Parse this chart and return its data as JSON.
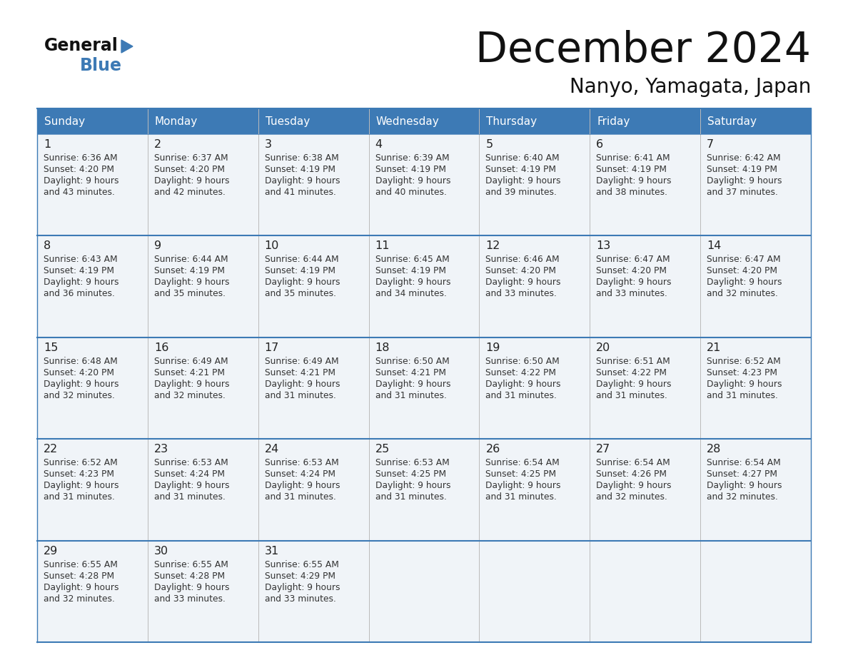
{
  "title": "December 2024",
  "subtitle": "Nanyo, Yamagata, Japan",
  "header_color": "#3d7ab5",
  "header_text_color": "#ffffff",
  "cell_bg": "#f0f4f8",
  "line_color": "#3d7ab5",
  "days_of_week": [
    "Sunday",
    "Monday",
    "Tuesday",
    "Wednesday",
    "Thursday",
    "Friday",
    "Saturday"
  ],
  "weeks": [
    [
      {
        "day": "1",
        "sunrise": "6:36 AM",
        "sunset": "4:20 PM",
        "daylight": "9 hours",
        "daylight2": "and 43 minutes."
      },
      {
        "day": "2",
        "sunrise": "6:37 AM",
        "sunset": "4:20 PM",
        "daylight": "9 hours",
        "daylight2": "and 42 minutes."
      },
      {
        "day": "3",
        "sunrise": "6:38 AM",
        "sunset": "4:19 PM",
        "daylight": "9 hours",
        "daylight2": "and 41 minutes."
      },
      {
        "day": "4",
        "sunrise": "6:39 AM",
        "sunset": "4:19 PM",
        "daylight": "9 hours",
        "daylight2": "and 40 minutes."
      },
      {
        "day": "5",
        "sunrise": "6:40 AM",
        "sunset": "4:19 PM",
        "daylight": "9 hours",
        "daylight2": "and 39 minutes."
      },
      {
        "day": "6",
        "sunrise": "6:41 AM",
        "sunset": "4:19 PM",
        "daylight": "9 hours",
        "daylight2": "and 38 minutes."
      },
      {
        "day": "7",
        "sunrise": "6:42 AM",
        "sunset": "4:19 PM",
        "daylight": "9 hours",
        "daylight2": "and 37 minutes."
      }
    ],
    [
      {
        "day": "8",
        "sunrise": "6:43 AM",
        "sunset": "4:19 PM",
        "daylight": "9 hours",
        "daylight2": "and 36 minutes."
      },
      {
        "day": "9",
        "sunrise": "6:44 AM",
        "sunset": "4:19 PM",
        "daylight": "9 hours",
        "daylight2": "and 35 minutes."
      },
      {
        "day": "10",
        "sunrise": "6:44 AM",
        "sunset": "4:19 PM",
        "daylight": "9 hours",
        "daylight2": "and 35 minutes."
      },
      {
        "day": "11",
        "sunrise": "6:45 AM",
        "sunset": "4:19 PM",
        "daylight": "9 hours",
        "daylight2": "and 34 minutes."
      },
      {
        "day": "12",
        "sunrise": "6:46 AM",
        "sunset": "4:20 PM",
        "daylight": "9 hours",
        "daylight2": "and 33 minutes."
      },
      {
        "day": "13",
        "sunrise": "6:47 AM",
        "sunset": "4:20 PM",
        "daylight": "9 hours",
        "daylight2": "and 33 minutes."
      },
      {
        "day": "14",
        "sunrise": "6:47 AM",
        "sunset": "4:20 PM",
        "daylight": "9 hours",
        "daylight2": "and 32 minutes."
      }
    ],
    [
      {
        "day": "15",
        "sunrise": "6:48 AM",
        "sunset": "4:20 PM",
        "daylight": "9 hours",
        "daylight2": "and 32 minutes."
      },
      {
        "day": "16",
        "sunrise": "6:49 AM",
        "sunset": "4:21 PM",
        "daylight": "9 hours",
        "daylight2": "and 32 minutes."
      },
      {
        "day": "17",
        "sunrise": "6:49 AM",
        "sunset": "4:21 PM",
        "daylight": "9 hours",
        "daylight2": "and 31 minutes."
      },
      {
        "day": "18",
        "sunrise": "6:50 AM",
        "sunset": "4:21 PM",
        "daylight": "9 hours",
        "daylight2": "and 31 minutes."
      },
      {
        "day": "19",
        "sunrise": "6:50 AM",
        "sunset": "4:22 PM",
        "daylight": "9 hours",
        "daylight2": "and 31 minutes."
      },
      {
        "day": "20",
        "sunrise": "6:51 AM",
        "sunset": "4:22 PM",
        "daylight": "9 hours",
        "daylight2": "and 31 minutes."
      },
      {
        "day": "21",
        "sunrise": "6:52 AM",
        "sunset": "4:23 PM",
        "daylight": "9 hours",
        "daylight2": "and 31 minutes."
      }
    ],
    [
      {
        "day": "22",
        "sunrise": "6:52 AM",
        "sunset": "4:23 PM",
        "daylight": "9 hours",
        "daylight2": "and 31 minutes."
      },
      {
        "day": "23",
        "sunrise": "6:53 AM",
        "sunset": "4:24 PM",
        "daylight": "9 hours",
        "daylight2": "and 31 minutes."
      },
      {
        "day": "24",
        "sunrise": "6:53 AM",
        "sunset": "4:24 PM",
        "daylight": "9 hours",
        "daylight2": "and 31 minutes."
      },
      {
        "day": "25",
        "sunrise": "6:53 AM",
        "sunset": "4:25 PM",
        "daylight": "9 hours",
        "daylight2": "and 31 minutes."
      },
      {
        "day": "26",
        "sunrise": "6:54 AM",
        "sunset": "4:25 PM",
        "daylight": "9 hours",
        "daylight2": "and 31 minutes."
      },
      {
        "day": "27",
        "sunrise": "6:54 AM",
        "sunset": "4:26 PM",
        "daylight": "9 hours",
        "daylight2": "and 32 minutes."
      },
      {
        "day": "28",
        "sunrise": "6:54 AM",
        "sunset": "4:27 PM",
        "daylight": "9 hours",
        "daylight2": "and 32 minutes."
      }
    ],
    [
      {
        "day": "29",
        "sunrise": "6:55 AM",
        "sunset": "4:28 PM",
        "daylight": "9 hours",
        "daylight2": "and 32 minutes."
      },
      {
        "day": "30",
        "sunrise": "6:55 AM",
        "sunset": "4:28 PM",
        "daylight": "9 hours",
        "daylight2": "and 33 minutes."
      },
      {
        "day": "31",
        "sunrise": "6:55 AM",
        "sunset": "4:29 PM",
        "daylight": "9 hours",
        "daylight2": "and 33 minutes."
      },
      null,
      null,
      null,
      null
    ]
  ]
}
